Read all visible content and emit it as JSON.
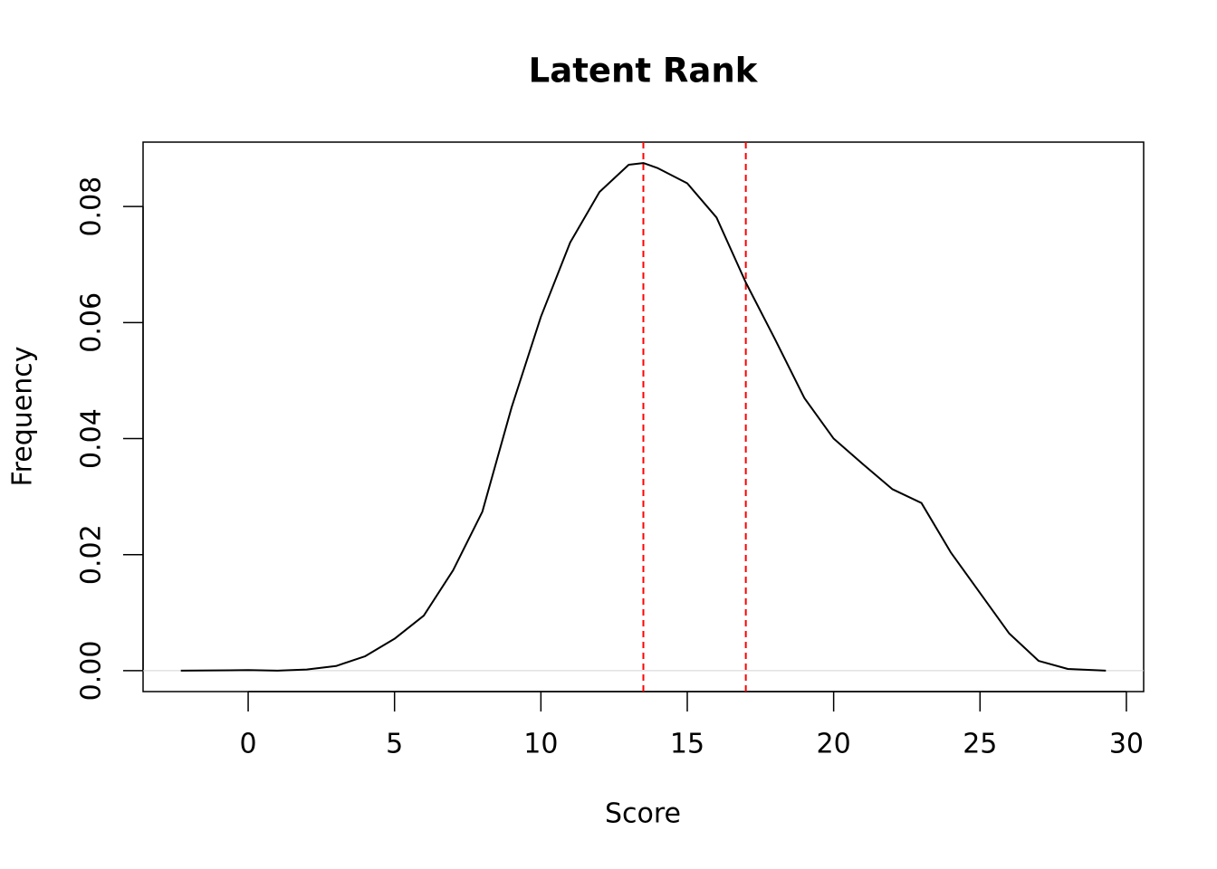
{
  "chart_data": {
    "type": "line",
    "title": "Latent Rank",
    "x_label": "Score",
    "y_label": "Frequency",
    "x": [
      -2.3,
      0,
      1,
      2,
      3,
      4,
      5,
      6,
      7,
      8,
      9,
      10,
      11,
      12,
      13,
      13.5,
      14,
      15,
      16,
      17,
      18,
      19,
      20,
      21,
      22,
      23,
      24,
      25,
      26,
      27,
      28,
      29.3
    ],
    "series": [
      {
        "color": "#000000",
        "values": [
          0,
          0.0001,
          0,
          0.0002,
          0.0008,
          0.0025,
          0.0055,
          0.0095,
          0.0173,
          0.0274,
          0.0454,
          0.061,
          0.0738,
          0.0825,
          0.0872,
          0.0875,
          0.0866,
          0.084,
          0.0781,
          0.0669,
          0.0571,
          0.047,
          0.04,
          0.0356,
          0.0313,
          0.0289,
          0.0204,
          0.0134,
          0.0064,
          0.0017,
          0.0003,
          0
        ]
      }
    ],
    "vlines": [
      13.5,
      17
    ],
    "vline_color": "#ff0000",
    "vline_dashed": true,
    "hlines": [
      0
    ],
    "hline_color": "#d3d3d3",
    "xlim": [
      -3.59,
      30.59
    ],
    "xticks": [
      0,
      5,
      10,
      15,
      20,
      25,
      30
    ],
    "ylim": [
      -0.0036,
      0.0911
    ],
    "yticks": [
      {
        "value": 0,
        "label": "0.00"
      },
      0.02,
      0.04,
      0.06,
      0.08
    ]
  }
}
